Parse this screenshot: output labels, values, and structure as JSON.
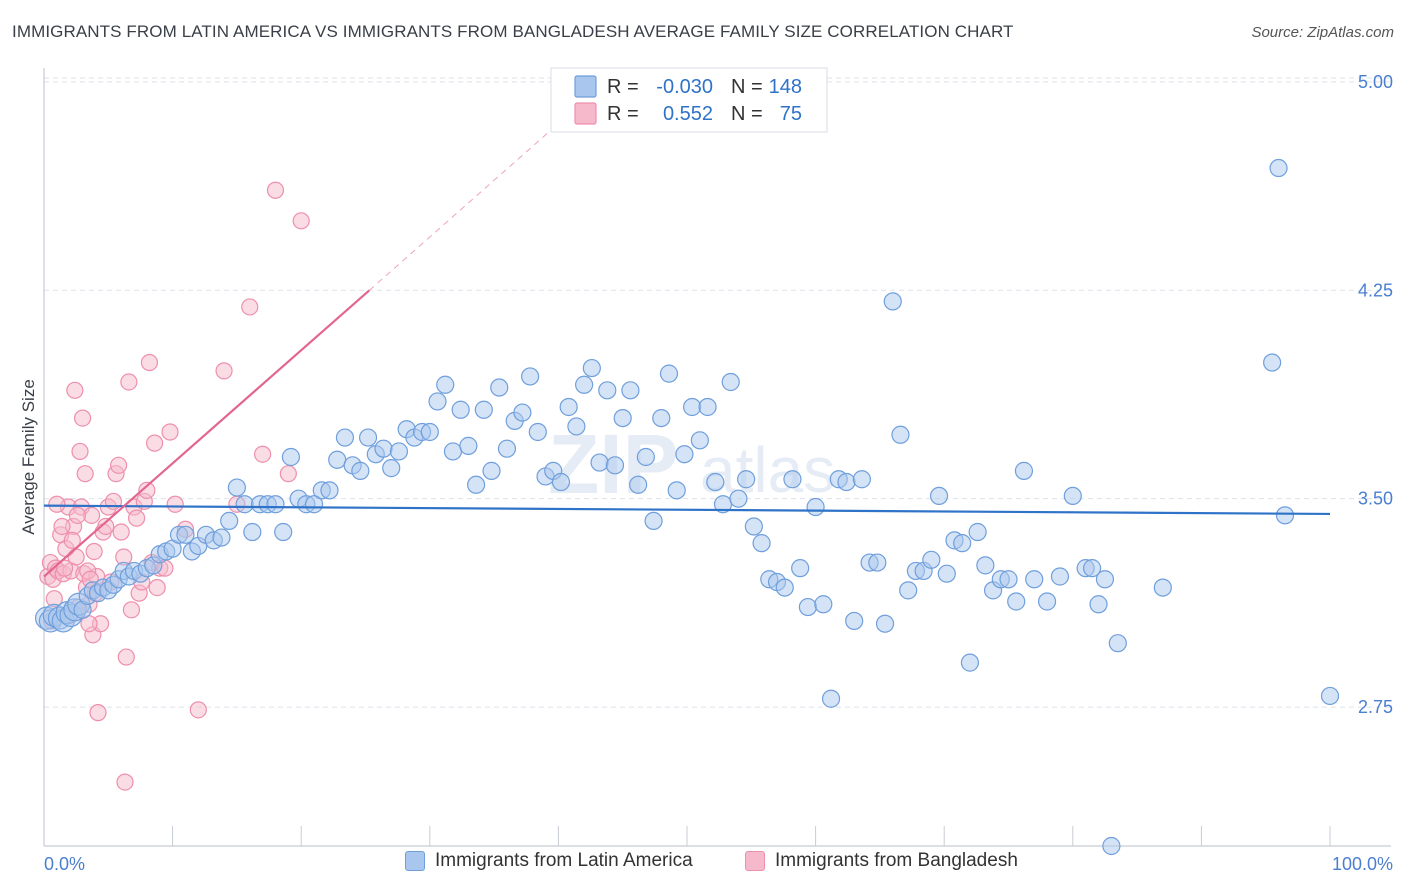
{
  "title": "IMMIGRANTS FROM LATIN AMERICA VS IMMIGRANTS FROM BANGLADESH AVERAGE FAMILY SIZE CORRELATION CHART",
  "source": "Source: ZipAtlas.com",
  "watermark": {
    "main": "ZIP",
    "sub": "atlas"
  },
  "legend": {
    "rows": [
      {
        "r_label": "R =",
        "r_value": "-0.030",
        "n_label": "N =",
        "n_value": "148"
      },
      {
        "r_label": "R =",
        "r_value": "0.552",
        "n_label": "N =",
        "n_value": "75"
      }
    ]
  },
  "bottom_legend": {
    "items": [
      {
        "label": "Immigrants from Latin America"
      },
      {
        "label": "Immigrants from Bangladesh"
      }
    ]
  },
  "colors": {
    "blue_fill": "#a9c7ee",
    "blue_stroke": "#6f9fdc",
    "blue_line": "#2f73c8",
    "pink_fill": "#f6b9cb",
    "pink_stroke": "#ee8fad",
    "pink_line": "#e2668f",
    "grid": "#dde2ea",
    "accent_text": "#4a7fd0"
  },
  "chart_data": {
    "type": "scatter",
    "title": "IMMIGRANTS FROM LATIN AMERICA VS IMMIGRANTS FROM BANGLADESH AVERAGE FAMILY SIZE CORRELATION CHART",
    "xlabel": "",
    "ylabel": "Average Family Size",
    "xlim": [
      0,
      100
    ],
    "ylim": [
      2.25,
      5.05
    ],
    "x_tick_labels": [
      "0.0%",
      "100.0%"
    ],
    "y_ticks": [
      2.75,
      3.5,
      4.25,
      5.0
    ],
    "y_tick_labels": [
      "2.75",
      "3.50",
      "4.25",
      "5.00"
    ],
    "grid": true,
    "series": [
      {
        "name": "Immigrants from Latin America",
        "r": -0.03,
        "n": 148,
        "trend": {
          "x0": 0,
          "y0": 3.475,
          "x1": 100,
          "y1": 3.445
        },
        "points": [
          [
            0.2,
            3.07
          ],
          [
            0.5,
            3.06
          ],
          [
            0.8,
            3.08
          ],
          [
            1.2,
            3.07
          ],
          [
            1.5,
            3.06
          ],
          [
            1.8,
            3.09
          ],
          [
            2.1,
            3.08
          ],
          [
            2.4,
            3.1
          ],
          [
            2.7,
            3.12
          ],
          [
            3.0,
            3.1
          ],
          [
            3.4,
            3.15
          ],
          [
            3.8,
            3.17
          ],
          [
            4.2,
            3.16
          ],
          [
            4.6,
            3.18
          ],
          [
            5.0,
            3.17
          ],
          [
            5.4,
            3.19
          ],
          [
            5.8,
            3.21
          ],
          [
            6.2,
            3.24
          ],
          [
            6.6,
            3.22
          ],
          [
            7.0,
            3.24
          ],
          [
            7.5,
            3.23
          ],
          [
            8.0,
            3.25
          ],
          [
            8.5,
            3.26
          ],
          [
            9.0,
            3.3
          ],
          [
            9.5,
            3.31
          ],
          [
            10.0,
            3.32
          ],
          [
            10.5,
            3.37
          ],
          [
            11.0,
            3.37
          ],
          [
            11.5,
            3.31
          ],
          [
            12.0,
            3.33
          ],
          [
            12.6,
            3.37
          ],
          [
            13.2,
            3.35
          ],
          [
            13.8,
            3.36
          ],
          [
            14.4,
            3.42
          ],
          [
            15.0,
            3.54
          ],
          [
            15.6,
            3.48
          ],
          [
            16.2,
            3.38
          ],
          [
            16.8,
            3.48
          ],
          [
            17.4,
            3.48
          ],
          [
            18.0,
            3.48
          ],
          [
            18.6,
            3.38
          ],
          [
            19.2,
            3.65
          ],
          [
            19.8,
            3.5
          ],
          [
            20.4,
            3.48
          ],
          [
            21.0,
            3.48
          ],
          [
            21.6,
            3.53
          ],
          [
            22.2,
            3.53
          ],
          [
            22.8,
            3.64
          ],
          [
            23.4,
            3.72
          ],
          [
            24.0,
            3.62
          ],
          [
            24.6,
            3.6
          ],
          [
            25.2,
            3.72
          ],
          [
            25.8,
            3.66
          ],
          [
            26.4,
            3.68
          ],
          [
            27.0,
            3.61
          ],
          [
            27.6,
            3.67
          ],
          [
            28.2,
            3.75
          ],
          [
            28.8,
            3.72
          ],
          [
            29.4,
            3.74
          ],
          [
            30.0,
            3.74
          ],
          [
            30.6,
            3.85
          ],
          [
            31.2,
            3.91
          ],
          [
            31.8,
            3.67
          ],
          [
            32.4,
            3.82
          ],
          [
            33.0,
            3.69
          ],
          [
            33.6,
            3.55
          ],
          [
            34.2,
            3.82
          ],
          [
            34.8,
            3.6
          ],
          [
            35.4,
            3.9
          ],
          [
            36.0,
            3.68
          ],
          [
            36.6,
            3.78
          ],
          [
            37.2,
            3.81
          ],
          [
            37.8,
            3.94
          ],
          [
            38.4,
            3.74
          ],
          [
            39.0,
            3.58
          ],
          [
            39.6,
            3.6
          ],
          [
            40.2,
            3.56
          ],
          [
            40.8,
            3.83
          ],
          [
            41.4,
            3.76
          ],
          [
            42.0,
            3.91
          ],
          [
            42.6,
            3.97
          ],
          [
            43.2,
            3.63
          ],
          [
            43.8,
            3.89
          ],
          [
            44.4,
            3.62
          ],
          [
            45.0,
            3.79
          ],
          [
            45.6,
            3.89
          ],
          [
            46.2,
            3.55
          ],
          [
            46.8,
            3.65
          ],
          [
            47.4,
            3.42
          ],
          [
            48.0,
            3.79
          ],
          [
            48.6,
            3.95
          ],
          [
            49.2,
            3.53
          ],
          [
            49.8,
            3.66
          ],
          [
            50.4,
            3.83
          ],
          [
            51.0,
            3.71
          ],
          [
            51.6,
            3.83
          ],
          [
            52.2,
            3.56
          ],
          [
            52.8,
            3.48
          ],
          [
            53.4,
            3.92
          ],
          [
            54.0,
            3.5
          ],
          [
            54.6,
            3.57
          ],
          [
            55.2,
            3.4
          ],
          [
            55.8,
            3.34
          ],
          [
            56.4,
            3.21
          ],
          [
            57.0,
            3.2
          ],
          [
            57.6,
            3.18
          ],
          [
            58.2,
            3.57
          ],
          [
            58.8,
            3.25
          ],
          [
            59.4,
            3.11
          ],
          [
            60.0,
            3.47
          ],
          [
            60.6,
            3.12
          ],
          [
            61.2,
            2.78
          ],
          [
            61.8,
            3.57
          ],
          [
            62.4,
            3.56
          ],
          [
            63.0,
            3.06
          ],
          [
            63.6,
            3.57
          ],
          [
            64.2,
            3.27
          ],
          [
            64.8,
            3.27
          ],
          [
            65.4,
            3.05
          ],
          [
            66.0,
            4.21
          ],
          [
            66.6,
            3.73
          ],
          [
            67.2,
            3.17
          ],
          [
            67.8,
            3.24
          ],
          [
            68.4,
            3.24
          ],
          [
            69.0,
            3.28
          ],
          [
            69.6,
            3.51
          ],
          [
            70.2,
            3.23
          ],
          [
            70.8,
            3.35
          ],
          [
            71.4,
            3.34
          ],
          [
            72.0,
            2.91
          ],
          [
            72.6,
            3.38
          ],
          [
            73.2,
            3.26
          ],
          [
            73.8,
            3.17
          ],
          [
            74.4,
            3.21
          ],
          [
            75.0,
            3.21
          ],
          [
            75.6,
            3.13
          ],
          [
            76.2,
            3.6
          ],
          [
            77.0,
            3.21
          ],
          [
            78.0,
            3.13
          ],
          [
            79.0,
            3.22
          ],
          [
            80.0,
            3.51
          ],
          [
            81.0,
            3.25
          ],
          [
            81.5,
            3.25
          ],
          [
            82.0,
            3.12
          ],
          [
            82.5,
            3.21
          ],
          [
            83.5,
            2.98
          ],
          [
            87.0,
            3.18
          ],
          [
            95.5,
            3.99
          ],
          [
            96.0,
            4.69
          ],
          [
            96.5,
            3.44
          ],
          [
            83.0,
            2.25
          ],
          [
            100.0,
            2.79
          ]
        ]
      },
      {
        "name": "Immigrants from Bangladesh",
        "r": 0.552,
        "n": 75,
        "trend": {
          "x0": 0,
          "y0": 3.22,
          "x1": 25.3,
          "y1": 4.25,
          "dash_x1": 40,
          "dash_y1": 4.85
        },
        "points": [
          [
            0.3,
            3.22
          ],
          [
            0.5,
            3.27
          ],
          [
            0.7,
            3.21
          ],
          [
            0.9,
            3.25
          ],
          [
            1.1,
            3.24
          ],
          [
            1.3,
            3.37
          ],
          [
            1.5,
            3.23
          ],
          [
            1.7,
            3.32
          ],
          [
            1.9,
            3.47
          ],
          [
            2.1,
            3.24
          ],
          [
            2.3,
            3.4
          ],
          [
            2.5,
            3.29
          ],
          [
            2.7,
            3.11
          ],
          [
            2.9,
            3.47
          ],
          [
            3.1,
            3.23
          ],
          [
            3.3,
            3.18
          ],
          [
            3.5,
            3.12
          ],
          [
            3.7,
            3.44
          ],
          [
            3.9,
            3.31
          ],
          [
            4.1,
            3.22
          ],
          [
            0.6,
            3.06
          ],
          [
            0.8,
            3.14
          ],
          [
            1.0,
            3.48
          ],
          [
            1.4,
            3.4
          ],
          [
            1.6,
            3.25
          ],
          [
            2.0,
            3.08
          ],
          [
            2.2,
            3.35
          ],
          [
            2.4,
            3.89
          ],
          [
            2.6,
            3.44
          ],
          [
            2.8,
            3.67
          ],
          [
            3.0,
            3.79
          ],
          [
            3.2,
            3.59
          ],
          [
            3.4,
            3.24
          ],
          [
            3.6,
            3.21
          ],
          [
            3.8,
            3.01
          ],
          [
            4.0,
            3.16
          ],
          [
            4.2,
            2.73
          ],
          [
            4.4,
            3.05
          ],
          [
            4.6,
            3.38
          ],
          [
            4.8,
            3.4
          ],
          [
            5.0,
            3.47
          ],
          [
            5.2,
            3.2
          ],
          [
            5.4,
            3.49
          ],
          [
            5.6,
            3.59
          ],
          [
            5.8,
            3.62
          ],
          [
            6.0,
            3.38
          ],
          [
            6.2,
            3.29
          ],
          [
            6.4,
            2.93
          ],
          [
            6.6,
            3.92
          ],
          [
            6.8,
            3.1
          ],
          [
            7.0,
            3.47
          ],
          [
            7.2,
            3.43
          ],
          [
            7.4,
            3.16
          ],
          [
            7.6,
            3.2
          ],
          [
            7.8,
            3.49
          ],
          [
            8.0,
            3.53
          ],
          [
            8.2,
            3.99
          ],
          [
            8.4,
            3.27
          ],
          [
            8.6,
            3.7
          ],
          [
            8.8,
            3.18
          ],
          [
            9.0,
            3.25
          ],
          [
            9.4,
            3.25
          ],
          [
            9.8,
            3.74
          ],
          [
            10.2,
            3.48
          ],
          [
            11.0,
            3.39
          ],
          [
            12.0,
            2.74
          ],
          [
            14.0,
            3.96
          ],
          [
            15.0,
            3.48
          ],
          [
            16.0,
            4.19
          ],
          [
            17.0,
            3.66
          ],
          [
            18.0,
            4.61
          ],
          [
            19.0,
            3.59
          ],
          [
            20.0,
            4.5
          ],
          [
            6.3,
            2.48
          ],
          [
            3.5,
            3.05
          ]
        ]
      }
    ]
  }
}
